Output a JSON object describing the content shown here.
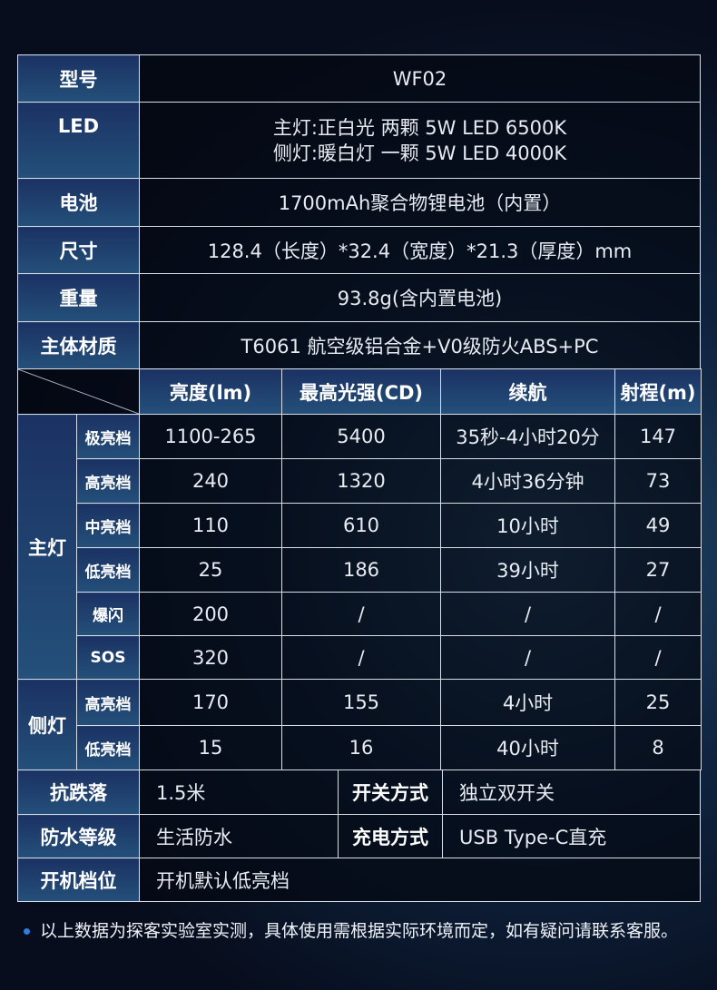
{
  "specs": {
    "model": {
      "label": "型号",
      "value": "WF02"
    },
    "led": {
      "label": "LED",
      "line1": "主灯:正白光 两颗 5W LED 6500K",
      "line2": "侧灯:暖白灯 一颗 5W LED 4000K"
    },
    "battery": {
      "label": "电池",
      "value": "1700mAh聚合物锂电池（内置）"
    },
    "size": {
      "label": "尺寸",
      "value": "128.4（长度）*32.4（宽度）*21.3（厚度）mm"
    },
    "weight": {
      "label": "重量",
      "value": "93.8g(含内置电池)"
    },
    "material": {
      "label": "主体材质",
      "value": "T6061 航空级铝合金+V0级防火ABS+PC"
    }
  },
  "modes": {
    "headers": [
      "亮度(lm)",
      "最高光强(CD)",
      "续航",
      "射程(m)"
    ],
    "main_label": "主灯",
    "side_label": "侧灯",
    "main": [
      [
        "极亮档",
        "1100-265",
        "5400",
        "35秒-4小时20分",
        "147"
      ],
      [
        "高亮档",
        "240",
        "1320",
        "4小时36分钟",
        "73"
      ],
      [
        "中亮档",
        "110",
        "610",
        "10小时",
        "49"
      ],
      [
        "低亮档",
        "25",
        "186",
        "39小时",
        "27"
      ],
      [
        "爆闪",
        "200",
        "/",
        "/",
        "/"
      ],
      [
        "SOS",
        "320",
        "/",
        "/",
        "/"
      ]
    ],
    "side": [
      [
        "高亮档",
        "170",
        "155",
        "4小时",
        "25"
      ],
      [
        "低亮档",
        "15",
        "16",
        "40小时",
        "8"
      ]
    ]
  },
  "extra": {
    "drop": {
      "label": "抗跌落",
      "value": "1.5米"
    },
    "switch": {
      "label": "开关方式",
      "value": "独立双开关"
    },
    "water": {
      "label": "防水等级",
      "value": "生活防水"
    },
    "charge": {
      "label": "充电方式",
      "value": "USB Type-C直充"
    },
    "default": {
      "label": "开机档位",
      "value": "开机默认低亮档"
    }
  },
  "note": "以上数据为探客实验室实测，具体使用需根据实际环境而定，如有疑问请联系客服。",
  "colors": {
    "label_bg": "#1b3263",
    "accent": "#2f7de0"
  }
}
